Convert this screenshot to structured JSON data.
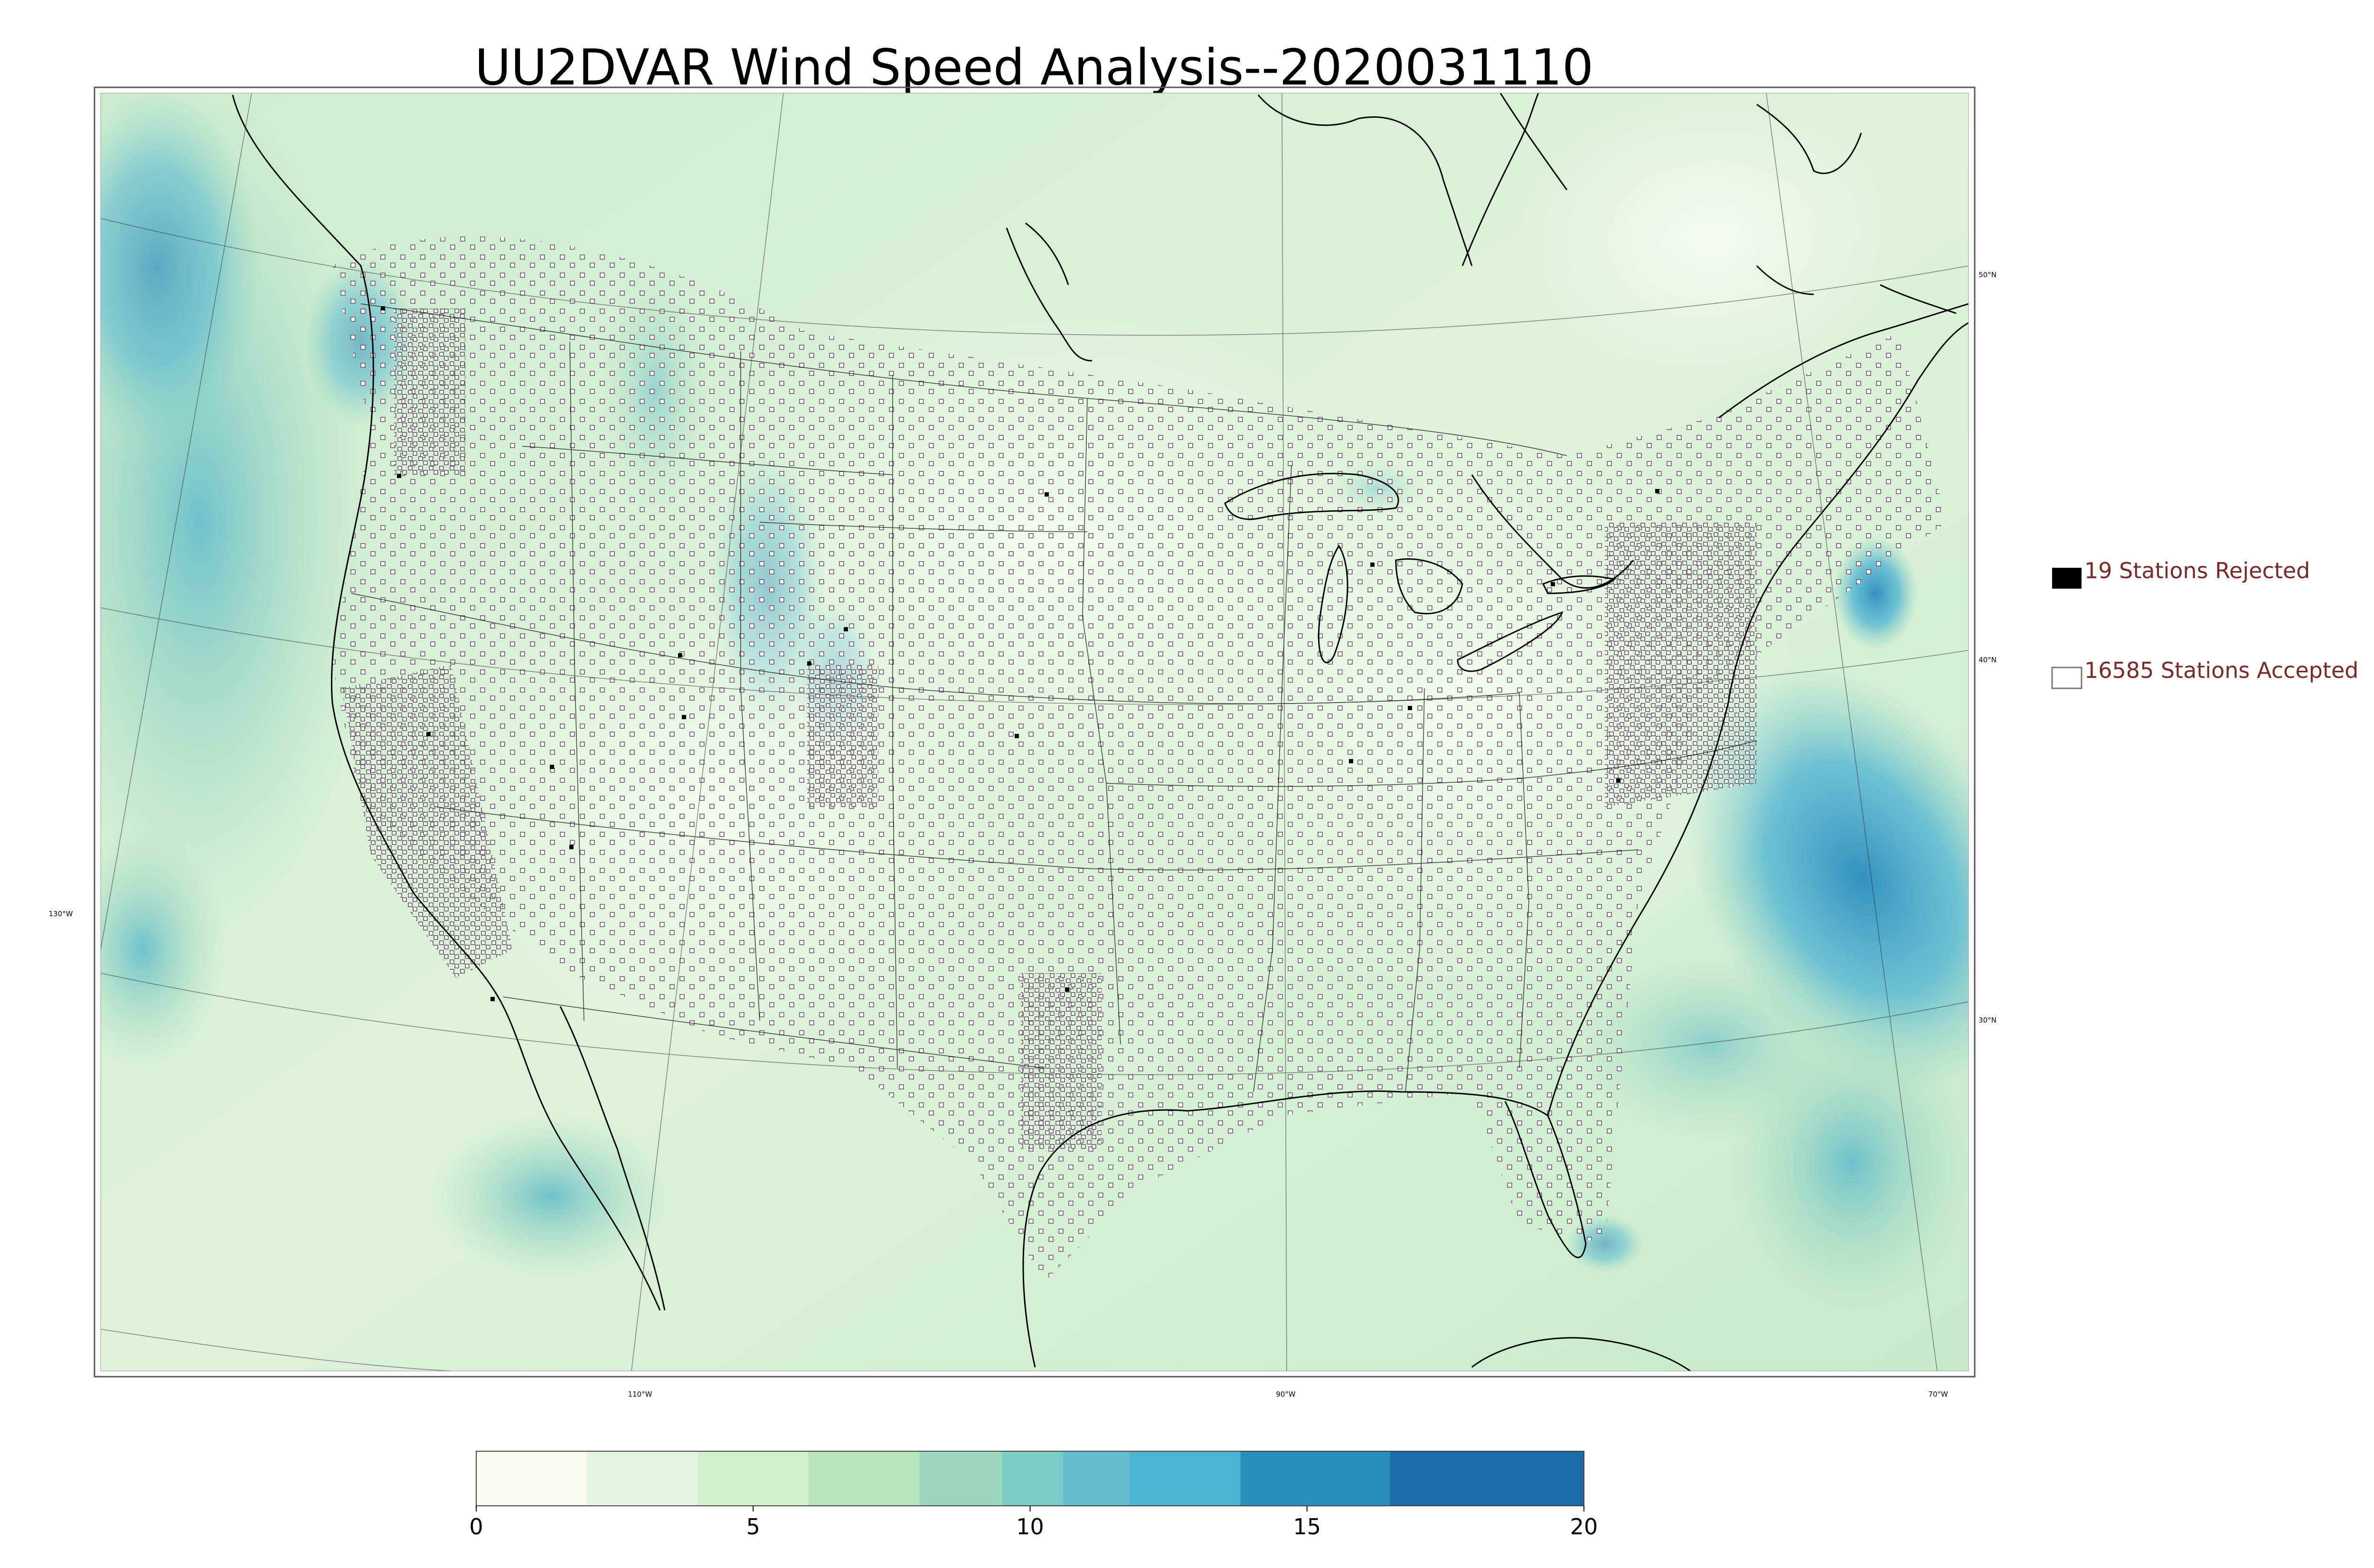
{
  "title": "UU2DVAR Wind Speed Analysis--2020031110",
  "map": {
    "longitude_labels": [
      "110°W",
      "90°W",
      "70°W",
      "130°W"
    ],
    "latitude_labels": [
      "50°N",
      "40°N",
      "30°N"
    ]
  },
  "legend": {
    "rejected_label": "19 Stations Rejected",
    "accepted_label": "16585 Stations Accepted",
    "rejected_count": 19,
    "accepted_count": 16585,
    "text_color": "#7a2a2a"
  },
  "colorbar": {
    "ticks": [
      "0",
      "5",
      "10",
      "15",
      "20"
    ],
    "range": [
      0,
      20
    ],
    "colors": [
      "#f7fcf0",
      "#e0f3db",
      "#ccebc5",
      "#a8ddb5",
      "#7bccc4",
      "#63bdcc",
      "#4eb3d3",
      "#2b8cbe",
      "#1b6ba8",
      "#165e94"
    ]
  }
}
